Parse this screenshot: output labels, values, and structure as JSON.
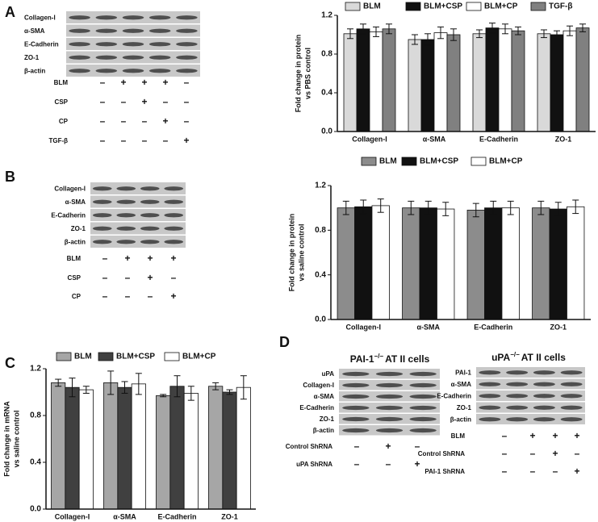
{
  "panel_labels": [
    "A",
    "B",
    "C",
    "D"
  ],
  "chart_data": [
    {
      "type": "bar",
      "ylabel": [
        "Fold change in protein",
        "vs PBS control"
      ],
      "categories": [
        "Collagen-I",
        "α-SMA",
        "E-Cadherin",
        "ZO-1"
      ],
      "series": [
        {
          "name": "BLM",
          "color": "#d9d9d9",
          "values": [
            1.01,
            0.95,
            1.01,
            1.01
          ],
          "errors": [
            0.05,
            0.05,
            0.04,
            0.04
          ]
        },
        {
          "name": "BLM+CSP",
          "color": "#111111",
          "values": [
            1.06,
            0.95,
            1.07,
            1.0
          ],
          "errors": [
            0.05,
            0.06,
            0.05,
            0.04
          ]
        },
        {
          "name": "BLM+CP",
          "color": "#ffffff",
          "values": [
            1.03,
            1.02,
            1.06,
            1.04
          ],
          "errors": [
            0.05,
            0.06,
            0.05,
            0.05
          ]
        },
        {
          "name": "TGF-β",
          "color": "#808080",
          "values": [
            1.06,
            1.0,
            1.04,
            1.07
          ],
          "errors": [
            0.05,
            0.06,
            0.04,
            0.04
          ]
        }
      ],
      "ylim": [
        0,
        1.2
      ],
      "yticks": [
        {
          "value": 0,
          "label": "0.0"
        },
        0.4,
        0.8,
        1.2
      ]
    },
    {
      "type": "bar",
      "ylabel": [
        "Fold change in protein",
        "vs saline control"
      ],
      "categories": [
        "Collagen-I",
        "α-SMA",
        "E-Cadherin",
        "ZO-1"
      ],
      "series": [
        {
          "name": "BLM",
          "color": "#8c8c8c",
          "values": [
            1.0,
            1.0,
            0.98,
            1.0
          ],
          "errors": [
            0.06,
            0.06,
            0.06,
            0.06
          ]
        },
        {
          "name": "BLM+CSP",
          "color": "#111111",
          "values": [
            1.01,
            1.0,
            1.0,
            0.99
          ],
          "errors": [
            0.06,
            0.06,
            0.06,
            0.06
          ]
        },
        {
          "name": "BLM+CP",
          "color": "#ffffff",
          "values": [
            1.02,
            0.99,
            1.0,
            1.01
          ],
          "errors": [
            0.06,
            0.06,
            0.06,
            0.06
          ]
        }
      ],
      "ylim": [
        0,
        1.2
      ],
      "yticks": [
        {
          "value": 0,
          "label": "0.0"
        },
        0.4,
        0.8,
        1.2
      ]
    },
    {
      "type": "bar",
      "ylabel": [
        "Fold change in mRNA",
        "vs saline control"
      ],
      "categories": [
        "Collagen-I",
        "α-SMA",
        "E-Cadherin",
        "ZO-1"
      ],
      "series": [
        {
          "name": "BLM",
          "color": "#a6a6a6",
          "values": [
            1.08,
            1.08,
            0.97,
            1.05
          ],
          "errors": [
            0.03,
            0.1,
            0.01,
            0.03
          ]
        },
        {
          "name": "BLM+CSP",
          "color": "#404040",
          "values": [
            1.04,
            1.04,
            1.05,
            1.0
          ],
          "errors": [
            0.08,
            0.05,
            0.09,
            0.02
          ]
        },
        {
          "name": "BLM+CP",
          "color": "#ffffff",
          "values": [
            1.02,
            1.07,
            0.99,
            1.04
          ],
          "errors": [
            0.03,
            0.09,
            0.06,
            0.1
          ]
        }
      ],
      "ylim": [
        0,
        1.2
      ],
      "yticks": [
        {
          "value": 0,
          "label": "0.0"
        },
        0.4,
        0.8,
        1.2
      ]
    }
  ],
  "blots": [
    {
      "rows": [
        "Collagen-I",
        "α-SMA",
        "E-Cadherin",
        "ZO-1",
        "β-actin"
      ],
      "treatments": [
        {
          "name": "BLM",
          "marks": [
            "–",
            "+",
            "+",
            "+",
            "–"
          ]
        },
        {
          "name": "CSP",
          "marks": [
            "–",
            "–",
            "+",
            "–",
            "–"
          ]
        },
        {
          "name": "CP",
          "marks": [
            "–",
            "–",
            "–",
            "+",
            "–"
          ]
        },
        {
          "name": "TGF-β",
          "marks": [
            "–",
            "–",
            "–",
            "–",
            "+"
          ]
        }
      ]
    },
    {
      "rows": [
        "Collagen-I",
        "α-SMA",
        "E-Cadherin",
        "ZO-1",
        "β-actin"
      ],
      "treatments": [
        {
          "name": "BLM",
          "marks": [
            "–",
            "+",
            "+",
            "+"
          ]
        },
        {
          "name": "CSP",
          "marks": [
            "–",
            "–",
            "+",
            "–"
          ]
        },
        {
          "name": "CP",
          "marks": [
            "–",
            "–",
            "–",
            "+"
          ]
        }
      ]
    },
    {
      "title": {
        "gene": "PAI-1",
        "superscript": "−/−",
        "suffix": "AT II cells"
      },
      "rows": [
        "uPA",
        "Collagen-I",
        "α-SMA",
        "E-Cadherin",
        "ZO-1",
        "β-actin"
      ],
      "treatments": [
        {
          "name": "Control ShRNA",
          "marks": [
            "–",
            "+",
            "–"
          ]
        },
        {
          "name": "uPA ShRNA",
          "marks": [
            "–",
            "–",
            "+"
          ]
        }
      ]
    },
    {
      "title": {
        "gene": "uPA",
        "superscript": "−/−",
        "suffix": "AT II cells"
      },
      "rows": [
        "PAI-1",
        "α-SMA",
        "E-Cadherin",
        "ZO-1",
        "β-actin"
      ],
      "treatments": [
        {
          "name": "BLM",
          "marks": [
            "–",
            "+",
            "+",
            "+"
          ]
        },
        {
          "name": "Control ShRNA",
          "marks": [
            "–",
            "–",
            "+",
            "–"
          ]
        },
        {
          "name": "PAI-1 ShRNA",
          "marks": [
            "–",
            "–",
            "–",
            "+"
          ]
        }
      ]
    }
  ]
}
